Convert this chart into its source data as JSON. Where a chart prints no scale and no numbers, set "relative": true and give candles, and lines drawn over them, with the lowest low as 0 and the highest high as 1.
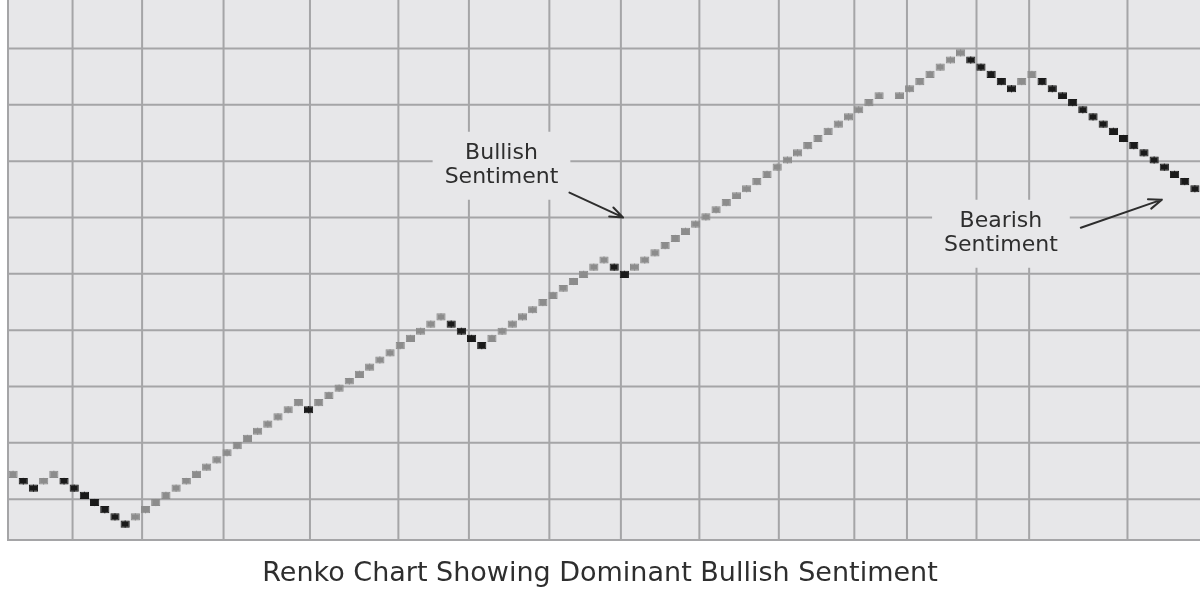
{
  "chart_data": {
    "type": "candlestick",
    "title": "Renko Chart Showing Dominant Bullish Sentiment",
    "relative": true,
    "grid": true,
    "tick_labels": false,
    "annotations": [
      "Bullish Sentiment",
      "Bearish Sentiment"
    ],
    "categories": [
      null,
      null,
      null,
      null,
      null,
      null,
      null,
      null,
      null,
      null,
      null,
      null,
      null,
      null,
      null,
      null,
      null,
      null,
      null,
      null,
      null,
      null,
      null,
      null,
      null,
      null,
      null,
      null,
      null,
      null,
      null,
      null,
      null,
      null,
      null,
      null,
      null,
      null,
      null,
      null,
      null,
      null,
      null,
      null,
      null,
      null,
      null,
      null,
      null,
      null,
      null,
      null,
      null,
      null,
      null,
      null,
      null,
      null,
      null,
      null,
      null,
      null,
      null,
      null,
      null,
      null,
      null,
      null,
      null,
      null,
      null,
      null,
      null,
      null,
      null,
      null,
      null,
      null,
      null,
      null,
      null,
      null,
      null,
      null,
      null,
      null,
      null,
      null,
      null,
      null,
      null,
      null,
      null,
      null,
      null,
      null,
      null,
      null,
      null,
      null,
      null,
      null,
      null,
      null,
      null,
      null,
      null,
      null,
      null,
      null,
      null,
      null,
      null,
      null,
      null,
      null,
      null
    ],
    "ohlc": [
      [
        0.104,
        0.119,
        0.104,
        0.119
      ],
      [
        0.104,
        0.104,
        0.09,
        0.09
      ],
      [
        0.09,
        0.09,
        0.075,
        0.075
      ],
      [
        0.09,
        0.104,
        0.09,
        0.104
      ],
      [
        0.104,
        0.119,
        0.104,
        0.119
      ],
      [
        0.104,
        0.104,
        0.09,
        0.09
      ],
      [
        0.09,
        0.09,
        0.075,
        0.075
      ],
      [
        0.075,
        0.075,
        0.06,
        0.06
      ],
      [
        0.06,
        0.06,
        0.045,
        0.045
      ],
      [
        0.045,
        0.045,
        0.03,
        0.03
      ],
      [
        0.03,
        0.03,
        0.015,
        0.015
      ],
      [
        0.015,
        0.015,
        0,
        0
      ],
      [
        0.015,
        0.03,
        0.015,
        0.03
      ],
      [
        0.03,
        0.045,
        0.03,
        0.045
      ],
      [
        0.045,
        0.06,
        0.045,
        0.06
      ],
      [
        0.06,
        0.075,
        0.06,
        0.075
      ],
      [
        0.075,
        0.09,
        0.075,
        0.09
      ],
      [
        0.09,
        0.104,
        0.09,
        0.104
      ],
      [
        0.104,
        0.119,
        0.104,
        0.119
      ],
      [
        0.119,
        0.134,
        0.119,
        0.134
      ],
      [
        0.134,
        0.149,
        0.134,
        0.149
      ],
      [
        0.149,
        0.164,
        0.149,
        0.164
      ],
      [
        0.164,
        0.179,
        0.164,
        0.179
      ],
      [
        0.179,
        0.194,
        0.179,
        0.194
      ],
      [
        0.194,
        0.209,
        0.194,
        0.209
      ],
      [
        0.209,
        0.224,
        0.209,
        0.224
      ],
      [
        0.224,
        0.239,
        0.224,
        0.239
      ],
      [
        0.239,
        0.254,
        0.239,
        0.254
      ],
      [
        0.254,
        0.269,
        0.254,
        0.269
      ],
      [
        0.254,
        0.254,
        0.239,
        0.239
      ],
      [
        0.254,
        0.269,
        0.254,
        0.269
      ],
      [
        0.269,
        0.284,
        0.269,
        0.284
      ],
      [
        0.284,
        0.299,
        0.284,
        0.299
      ],
      [
        0.299,
        0.313,
        0.299,
        0.313
      ],
      [
        0.313,
        0.328,
        0.313,
        0.328
      ],
      [
        0.328,
        0.343,
        0.328,
        0.343
      ],
      [
        0.343,
        0.358,
        0.343,
        0.358
      ],
      [
        0.358,
        0.373,
        0.358,
        0.373
      ],
      [
        0.373,
        0.388,
        0.373,
        0.388
      ],
      [
        0.388,
        0.403,
        0.388,
        0.403
      ],
      [
        0.403,
        0.418,
        0.403,
        0.418
      ],
      [
        0.418,
        0.433,
        0.418,
        0.433
      ],
      [
        0.433,
        0.448,
        0.433,
        0.448
      ],
      [
        0.433,
        0.433,
        0.418,
        0.418
      ],
      [
        0.418,
        0.418,
        0.403,
        0.403
      ],
      [
        0.403,
        0.403,
        0.388,
        0.388
      ],
      [
        0.388,
        0.388,
        0.373,
        0.373
      ],
      [
        0.388,
        0.403,
        0.388,
        0.403
      ],
      [
        0.403,
        0.418,
        0.403,
        0.418
      ],
      [
        0.418,
        0.433,
        0.418,
        0.433
      ],
      [
        0.433,
        0.448,
        0.433,
        0.448
      ],
      [
        0.448,
        0.463,
        0.448,
        0.463
      ],
      [
        0.463,
        0.478,
        0.463,
        0.478
      ],
      [
        0.478,
        0.493,
        0.478,
        0.493
      ],
      [
        0.493,
        0.507,
        0.493,
        0.507
      ],
      [
        0.507,
        0.522,
        0.507,
        0.522
      ],
      [
        0.522,
        0.537,
        0.522,
        0.537
      ],
      [
        0.537,
        0.552,
        0.537,
        0.552
      ],
      [
        0.552,
        0.567,
        0.552,
        0.567
      ],
      [
        0.552,
        0.552,
        0.537,
        0.537
      ],
      [
        0.537,
        0.537,
        0.522,
        0.522
      ],
      [
        0.537,
        0.552,
        0.537,
        0.552
      ],
      [
        0.552,
        0.567,
        0.552,
        0.567
      ],
      [
        0.567,
        0.582,
        0.567,
        0.582
      ],
      [
        0.582,
        0.597,
        0.582,
        0.597
      ],
      [
        0.597,
        0.612,
        0.597,
        0.612
      ],
      [
        0.612,
        0.627,
        0.612,
        0.627
      ],
      [
        0.627,
        0.642,
        0.627,
        0.642
      ],
      [
        0.642,
        0.657,
        0.642,
        0.657
      ],
      [
        0.657,
        0.672,
        0.657,
        0.672
      ],
      [
        0.672,
        0.687,
        0.672,
        0.687
      ],
      [
        0.687,
        0.701,
        0.687,
        0.701
      ],
      [
        0.701,
        0.716,
        0.701,
        0.716
      ],
      [
        0.716,
        0.731,
        0.716,
        0.731
      ],
      [
        0.731,
        0.746,
        0.731,
        0.746
      ],
      [
        0.746,
        0.761,
        0.746,
        0.761
      ],
      [
        0.761,
        0.776,
        0.761,
        0.776
      ],
      [
        0.776,
        0.791,
        0.776,
        0.791
      ],
      [
        0.791,
        0.806,
        0.791,
        0.806
      ],
      [
        0.806,
        0.821,
        0.806,
        0.821
      ],
      [
        0.821,
        0.836,
        0.821,
        0.836
      ],
      [
        0.836,
        0.851,
        0.836,
        0.851
      ],
      [
        0.851,
        0.866,
        0.851,
        0.866
      ],
      [
        0.866,
        0.881,
        0.866,
        0.881
      ],
      [
        0.881,
        0.896,
        0.881,
        0.896
      ],
      [
        0.896,
        0.91,
        0.896,
        0.91
      ],
      null,
      [
        0.896,
        0.91,
        0.896,
        0.91
      ],
      [
        0.91,
        0.925,
        0.91,
        0.925
      ],
      [
        0.925,
        0.94,
        0.925,
        0.94
      ],
      [
        0.94,
        0.955,
        0.94,
        0.955
      ],
      [
        0.955,
        0.97,
        0.955,
        0.97
      ],
      [
        0.97,
        0.985,
        0.97,
        0.985
      ],
      [
        0.985,
        1,
        0.985,
        1
      ],
      [
        0.985,
        0.985,
        0.97,
        0.97
      ],
      [
        0.97,
        0.97,
        0.955,
        0.955
      ],
      [
        0.955,
        0.955,
        0.94,
        0.94
      ],
      [
        0.94,
        0.94,
        0.925,
        0.925
      ],
      [
        0.925,
        0.925,
        0.91,
        0.91
      ],
      [
        0.925,
        0.94,
        0.925,
        0.94
      ],
      [
        0.94,
        0.955,
        0.94,
        0.955
      ],
      [
        0.94,
        0.94,
        0.925,
        0.925
      ],
      [
        0.925,
        0.925,
        0.91,
        0.91
      ],
      [
        0.91,
        0.91,
        0.896,
        0.896
      ],
      [
        0.896,
        0.896,
        0.881,
        0.881
      ],
      [
        0.881,
        0.881,
        0.866,
        0.866
      ],
      [
        0.866,
        0.866,
        0.851,
        0.851
      ],
      [
        0.851,
        0.851,
        0.836,
        0.836
      ],
      [
        0.836,
        0.836,
        0.821,
        0.821
      ],
      [
        0.821,
        0.821,
        0.806,
        0.806
      ],
      [
        0.806,
        0.806,
        0.791,
        0.791
      ],
      [
        0.791,
        0.791,
        0.776,
        0.776
      ],
      [
        0.776,
        0.776,
        0.761,
        0.761
      ],
      [
        0.761,
        0.761,
        0.746,
        0.746
      ],
      [
        0.746,
        0.746,
        0.731,
        0.731
      ],
      [
        0.731,
        0.731,
        0.716,
        0.716
      ],
      [
        0.716,
        0.716,
        0.701,
        0.701
      ]
    ],
    "colors": [
      "#8c8c8c",
      "#1a1a1a",
      "#1a1a1a",
      "#8c8c8c",
      "#8c8c8c",
      "#1a1a1a",
      "#1a1a1a",
      "#1a1a1a",
      "#1a1a1a",
      "#1a1a1a",
      "#1a1a1a",
      "#1a1a1a",
      "#8c8c8c",
      "#8c8c8c",
      "#8c8c8c",
      "#8c8c8c",
      "#8c8c8c",
      "#8c8c8c",
      "#8c8c8c",
      "#8c8c8c",
      "#8c8c8c",
      "#8c8c8c",
      "#8c8c8c",
      "#8c8c8c",
      "#8c8c8c",
      "#8c8c8c",
      "#8c8c8c",
      "#8c8c8c",
      "#8c8c8c",
      "#1a1a1a",
      "#8c8c8c",
      "#8c8c8c",
      "#8c8c8c",
      "#8c8c8c",
      "#8c8c8c",
      "#8c8c8c",
      "#8c8c8c",
      "#8c8c8c",
      "#8c8c8c",
      "#8c8c8c",
      "#8c8c8c",
      "#8c8c8c",
      "#8c8c8c",
      "#1a1a1a",
      "#1a1a1a",
      "#1a1a1a",
      "#1a1a1a",
      "#8c8c8c",
      "#8c8c8c",
      "#8c8c8c",
      "#8c8c8c",
      "#8c8c8c",
      "#8c8c8c",
      "#8c8c8c",
      "#8c8c8c",
      "#8c8c8c",
      "#8c8c8c",
      "#8c8c8c",
      "#8c8c8c",
      "#1a1a1a",
      "#1a1a1a",
      "#8c8c8c",
      "#8c8c8c",
      "#8c8c8c",
      "#8c8c8c",
      "#8c8c8c",
      "#8c8c8c",
      "#8c8c8c",
      "#8c8c8c",
      "#8c8c8c",
      "#8c8c8c",
      "#8c8c8c",
      "#8c8c8c",
      "#8c8c8c",
      "#8c8c8c",
      "#8c8c8c",
      "#8c8c8c",
      "#8c8c8c",
      "#8c8c8c",
      "#8c8c8c",
      "#8c8c8c",
      "#8c8c8c",
      "#8c8c8c",
      "#8c8c8c",
      "#8c8c8c",
      "#8c8c8c",
      null,
      "#8c8c8c",
      "#8c8c8c",
      "#8c8c8c",
      "#8c8c8c",
      "#8c8c8c",
      "#8c8c8c",
      "#8c8c8c",
      "#1a1a1a",
      "#1a1a1a",
      "#1a1a1a",
      "#1a1a1a",
      "#1a1a1a",
      "#8c8c8c",
      "#8c8c8c",
      "#1a1a1a",
      "#1a1a1a",
      "#1a1a1a",
      "#1a1a1a",
      "#1a1a1a",
      "#1a1a1a",
      "#1a1a1a",
      "#1a1a1a",
      "#1a1a1a",
      "#1a1a1a",
      "#1a1a1a",
      "#1a1a1a",
      "#1a1a1a",
      "#1a1a1a",
      "#1a1a1a",
      "#1a1a1a"
    ]
  }
}
